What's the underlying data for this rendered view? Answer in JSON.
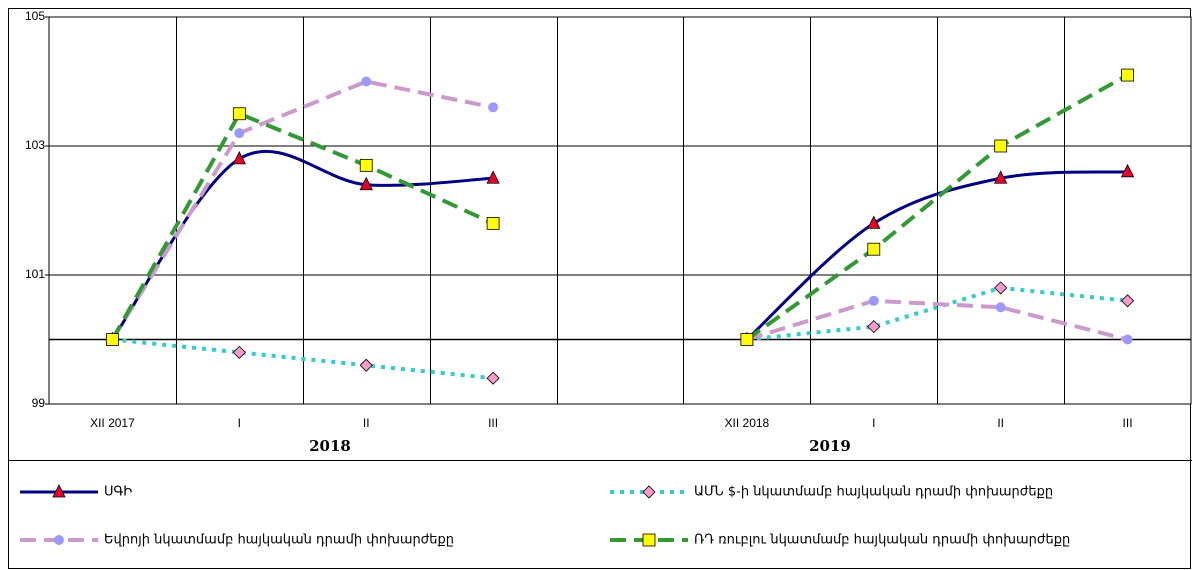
{
  "chart_data": {
    "type": "line",
    "categories": [
      "XII 2017",
      "I",
      "II",
      "III",
      null,
      "XII 2018",
      "I",
      "II",
      "III"
    ],
    "group_labels": [
      "2018",
      "2019"
    ],
    "ylim": [
      99,
      105
    ],
    "yticks": [
      99,
      101,
      103,
      105
    ],
    "reference_line": 100,
    "grid": true,
    "series": [
      {
        "name": "ՍԳԻ",
        "color": "#000080",
        "dash": "solid",
        "smooth": true,
        "marker": "triangle",
        "marker_color": "#e8002a",
        "values": [
          100,
          102.8,
          102.4,
          102.5,
          null,
          100,
          101.8,
          102.5,
          102.6
        ]
      },
      {
        "name": "ԱՄՆ $-ի նկատմամբ հայկական դրամի փոխարժեքը",
        "color": "#33cccc",
        "dash": "dot",
        "smooth": false,
        "marker": "diamond",
        "marker_color": "#ff99cc",
        "values": [
          100,
          99.8,
          99.6,
          99.4,
          null,
          100,
          100.2,
          100.8,
          100.6
        ]
      },
      {
        "name": "Եվրոյի նկատմամբ հայկական դրամի փոխարժեքը",
        "color": "#cc99cc",
        "dash": "dash",
        "smooth": false,
        "marker": "circle",
        "marker_color": "#9999ff",
        "values": [
          100,
          103.2,
          104.0,
          103.6,
          null,
          100,
          100.6,
          100.5,
          100.0
        ]
      },
      {
        "name": "ՌԴ ռուբլու նկատմամբ հայկական դրամի  փոխարժեքը",
        "color": "#339933",
        "dash": "dash",
        "smooth": false,
        "marker": "square",
        "marker_color": "#ffff00",
        "values": [
          100,
          103.5,
          102.7,
          101.8,
          null,
          100,
          101.4,
          103.0,
          104.1
        ]
      }
    ]
  }
}
